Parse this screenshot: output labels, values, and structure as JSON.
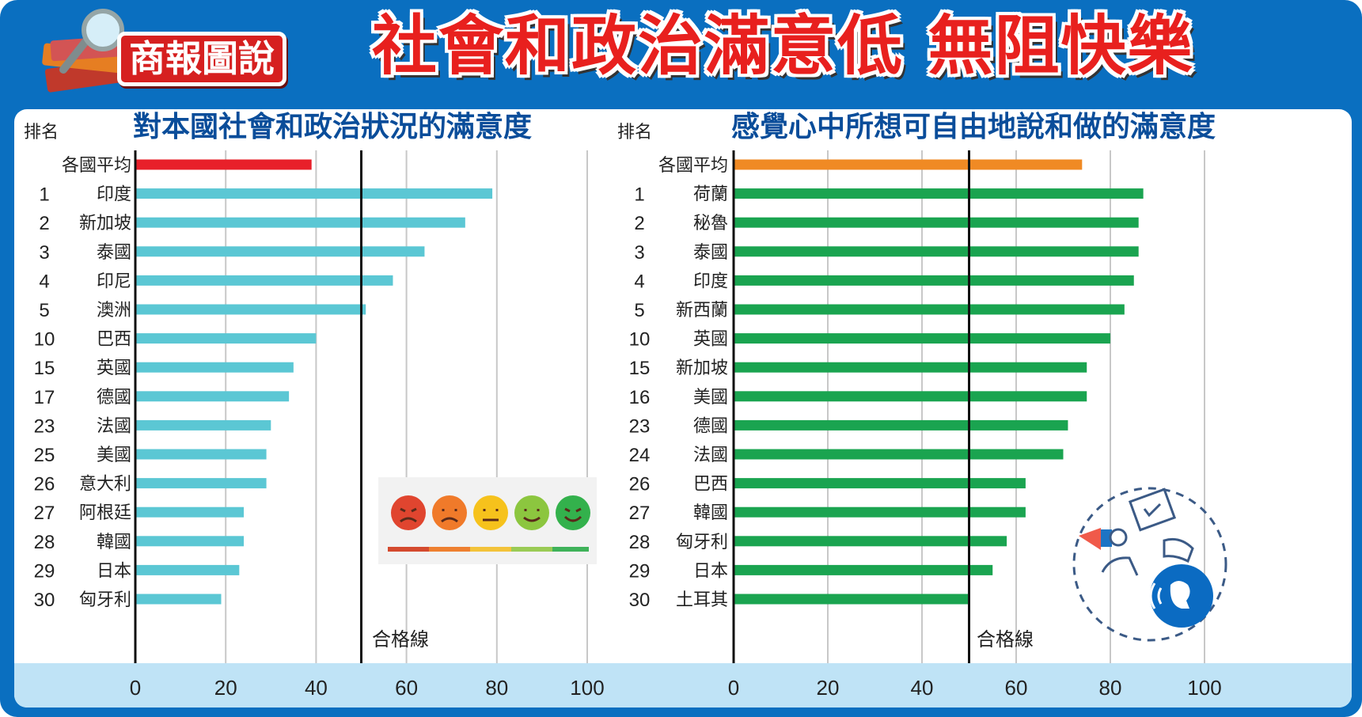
{
  "header": {
    "badge": "商報圖說",
    "title": "社會和政治滿意低 無阻快樂"
  },
  "icons": {
    "badge_icon": "book-magnifier-icon",
    "mood_scale": "mood-scale-icon",
    "free_speech": "free-speech-icon"
  },
  "colors": {
    "frame": "#0a6fc0",
    "title_red": "#e8201e",
    "avg_red": "#e8202a",
    "avg_orange": "#f08a24",
    "cyan": "#5bc7d4",
    "green": "#1aa450",
    "axis_band": "#bfe3f6"
  },
  "chart_data": [
    {
      "type": "bar",
      "orientation": "horizontal",
      "title": "對本國社會和政治狀況的滿意度",
      "rank_header": "排名",
      "ranks": [
        "",
        "1",
        "2",
        "3",
        "4",
        "5",
        "10",
        "15",
        "17",
        "23",
        "25",
        "26",
        "27",
        "28",
        "29",
        "30"
      ],
      "categories": [
        "各國平均",
        "印度",
        "新加坡",
        "泰國",
        "印尼",
        "澳洲",
        "巴西",
        "英國",
        "德國",
        "法國",
        "美國",
        "意大利",
        "阿根廷",
        "韓國",
        "日本",
        "匈牙利"
      ],
      "values": [
        39,
        79,
        73,
        64,
        57,
        51,
        40,
        35,
        34,
        30,
        29,
        29,
        24,
        24,
        23,
        19
      ],
      "xlim": [
        0,
        100
      ],
      "xticks": [
        0,
        20,
        40,
        60,
        80,
        100
      ],
      "grid": true,
      "reference_line": {
        "value": 50,
        "label": "合格線"
      }
    },
    {
      "type": "bar",
      "orientation": "horizontal",
      "title": "感覺心中所想可自由地說和做的滿意度",
      "rank_header": "排名",
      "ranks": [
        "",
        "1",
        "2",
        "3",
        "4",
        "5",
        "10",
        "15",
        "16",
        "23",
        "24",
        "26",
        "27",
        "28",
        "29",
        "30"
      ],
      "categories": [
        "各國平均",
        "荷蘭",
        "秘魯",
        "泰國",
        "印度",
        "新西蘭",
        "英國",
        "新加坡",
        "美國",
        "德國",
        "法國",
        "巴西",
        "韓國",
        "匈牙利",
        "日本",
        "土耳其"
      ],
      "values": [
        74,
        87,
        86,
        86,
        85,
        83,
        80,
        75,
        75,
        71,
        70,
        62,
        62,
        58,
        55,
        50
      ],
      "xlim": [
        0,
        100
      ],
      "xticks": [
        0,
        20,
        40,
        60,
        80,
        100
      ],
      "grid": true,
      "reference_line": {
        "value": 50,
        "label": "合格線"
      }
    }
  ]
}
